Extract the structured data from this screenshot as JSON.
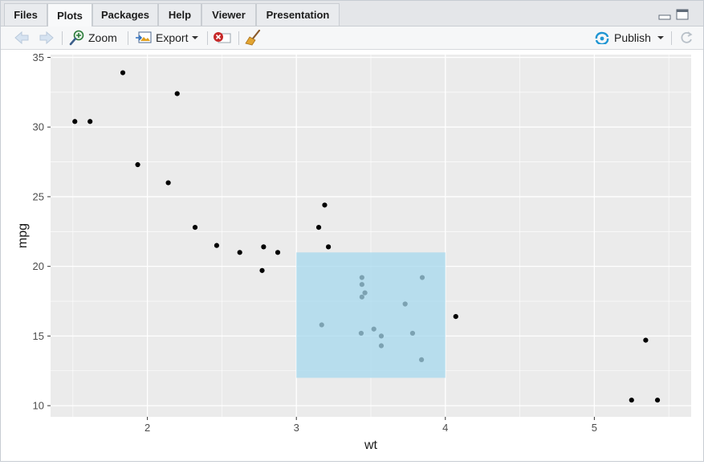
{
  "tabs": [
    {
      "label": "Files",
      "active": false
    },
    {
      "label": "Plots",
      "active": true
    },
    {
      "label": "Packages",
      "active": false
    },
    {
      "label": "Help",
      "active": false
    },
    {
      "label": "Viewer",
      "active": false
    },
    {
      "label": "Presentation",
      "active": false
    }
  ],
  "toolbar": {
    "back_icon": "arrow-left-icon",
    "forward_icon": "arrow-right-icon",
    "zoom_label": "Zoom",
    "export_label": "Export",
    "remove_icon": "remove-plot-icon",
    "clear_icon": "broom-icon",
    "publish_label": "Publish",
    "refresh_icon": "refresh-icon"
  },
  "colors": {
    "panel_bg": "#ebebeb",
    "grid": "#ffffff",
    "point": "#000000",
    "highlight": "#a6d8ee",
    "accent": "#1f96d3"
  },
  "chart_data": {
    "type": "scatter",
    "title": "",
    "xlabel": "wt",
    "ylabel": "mpg",
    "xlim": [
      1.35,
      5.65
    ],
    "ylim": [
      9.2,
      35.2
    ],
    "x_ticks": [
      2,
      3,
      4,
      5
    ],
    "y_ticks": [
      10,
      15,
      20,
      25,
      30,
      35
    ],
    "grid": true,
    "points": [
      {
        "x": 1.513,
        "y": 30.4
      },
      {
        "x": 1.615,
        "y": 30.4
      },
      {
        "x": 1.835,
        "y": 33.9
      },
      {
        "x": 1.935,
        "y": 27.3
      },
      {
        "x": 2.14,
        "y": 26.0
      },
      {
        "x": 2.2,
        "y": 32.4
      },
      {
        "x": 2.32,
        "y": 22.8
      },
      {
        "x": 2.465,
        "y": 21.5
      },
      {
        "x": 2.62,
        "y": 21.0
      },
      {
        "x": 2.77,
        "y": 19.7
      },
      {
        "x": 2.78,
        "y": 21.4
      },
      {
        "x": 2.875,
        "y": 21.0
      },
      {
        "x": 3.15,
        "y": 22.8
      },
      {
        "x": 3.17,
        "y": 15.8
      },
      {
        "x": 3.19,
        "y": 24.4
      },
      {
        "x": 3.215,
        "y": 21.4
      },
      {
        "x": 3.435,
        "y": 15.2
      },
      {
        "x": 3.44,
        "y": 18.7
      },
      {
        "x": 3.44,
        "y": 19.2
      },
      {
        "x": 3.44,
        "y": 17.8
      },
      {
        "x": 3.46,
        "y": 18.1
      },
      {
        "x": 3.52,
        "y": 15.5
      },
      {
        "x": 3.57,
        "y": 15.0
      },
      {
        "x": 3.57,
        "y": 14.3
      },
      {
        "x": 3.73,
        "y": 17.3
      },
      {
        "x": 3.78,
        "y": 15.2
      },
      {
        "x": 3.84,
        "y": 13.3
      },
      {
        "x": 3.845,
        "y": 19.2
      },
      {
        "x": 4.07,
        "y": 16.4
      },
      {
        "x": 5.25,
        "y": 10.4
      },
      {
        "x": 5.345,
        "y": 14.7
      },
      {
        "x": 5.424,
        "y": 10.4
      }
    ],
    "highlight_rect": {
      "xmin": 3,
      "xmax": 4,
      "ymin": 12,
      "ymax": 21
    }
  }
}
